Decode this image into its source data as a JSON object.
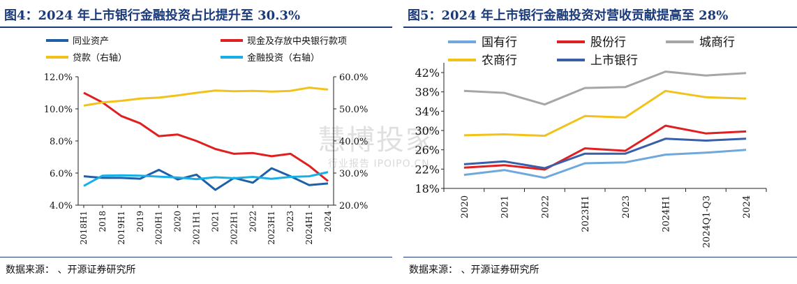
{
  "charts": [
    {
      "title": "图4：2024 年上市银行金融投资占比提升至 30.3%",
      "source": "数据来源：      、开源证券研究所"
    },
    {
      "title": "图5：2024 年上市银行金融投资对营收贡献提高至 28%",
      "source": "数据来源：      、开源证券研究所"
    }
  ],
  "watermark": {
    "main": "慧博投家",
    "sub": "行业报告 IPOIPO.CN"
  },
  "chart_data": [
    {
      "type": "line",
      "title": "图4：2024 年上市银行金融投资占比提升至 30.3%",
      "categories": [
        "2018H1",
        "2018",
        "2019H1",
        "2019",
        "2020H1",
        "2020",
        "2021H1",
        "2021",
        "2022H1",
        "2022",
        "2023H1",
        "2023",
        "2024H1",
        "2024"
      ],
      "y_left": {
        "min": 4,
        "max": 12,
        "ticks": [
          "4.0%",
          "6.0%",
          "8.0%",
          "10.0%",
          "12.0%"
        ]
      },
      "y_right": {
        "min": 20,
        "max": 60,
        "ticks": [
          "20.0%",
          "30.0%",
          "40.0%",
          "50.0%",
          "60.0%"
        ]
      },
      "legend_position": "top",
      "series": [
        {
          "name": "同业资产",
          "color": "#1f5fa8",
          "axis": "left",
          "values": [
            5.8,
            5.7,
            5.7,
            5.65,
            6.2,
            5.6,
            5.9,
            4.95,
            5.7,
            5.4,
            6.3,
            5.8,
            5.25,
            5.35
          ]
        },
        {
          "name": "现金及存放中央银行款项",
          "color": "#e02020",
          "axis": "left",
          "values": [
            11.0,
            10.4,
            9.55,
            9.1,
            8.3,
            8.4,
            8.0,
            7.5,
            7.2,
            7.25,
            7.05,
            7.2,
            6.45,
            5.5
          ]
        },
        {
          "name": "贷款（右轴）",
          "color": "#f2c21b",
          "axis": "right",
          "values": [
            51.0,
            52.0,
            52.5,
            53.2,
            53.5,
            54.2,
            55.0,
            55.7,
            55.5,
            55.6,
            55.4,
            55.6,
            56.6,
            56.0
          ]
        },
        {
          "name": "金融投资（右轴）",
          "color": "#17b0e6",
          "axis": "right",
          "values": [
            26.0,
            29.2,
            29.3,
            29.2,
            28.9,
            28.6,
            28.1,
            28.7,
            28.4,
            28.8,
            28.2,
            28.8,
            29.0,
            30.3
          ]
        }
      ]
    },
    {
      "type": "line",
      "title": "图5：2024 年上市银行金融投资对营收贡献提高至 28%",
      "categories": [
        "2020",
        "2021",
        "2022",
        "2023H1",
        "2023",
        "2024H1",
        "2024Q1-Q3",
        "2024"
      ],
      "y": {
        "min": 18,
        "max": 42,
        "ticks": [
          "18%",
          "22%",
          "26%",
          "30%",
          "34%",
          "38%",
          "42%"
        ]
      },
      "legend_position": "top",
      "series": [
        {
          "name": "国有行",
          "color": "#6fa8dc",
          "values": [
            20.8,
            21.8,
            20.2,
            23.2,
            23.4,
            25.0,
            25.4,
            26.0
          ]
        },
        {
          "name": "股份行",
          "color": "#e02020",
          "values": [
            22.3,
            22.8,
            21.9,
            26.3,
            25.8,
            31.0,
            29.4,
            29.8
          ]
        },
        {
          "name": "城商行",
          "color": "#a6a6a6",
          "values": [
            38.2,
            37.8,
            35.4,
            38.8,
            39.0,
            42.2,
            41.4,
            41.9
          ]
        },
        {
          "name": "农商行",
          "color": "#f2c21b",
          "values": [
            29.0,
            29.2,
            28.9,
            33.0,
            32.7,
            38.2,
            36.9,
            36.6
          ]
        },
        {
          "name": "上市银行",
          "color": "#3a5faa",
          "values": [
            23.0,
            23.6,
            22.2,
            25.2,
            25.2,
            28.3,
            27.9,
            28.3
          ]
        }
      ]
    }
  ]
}
